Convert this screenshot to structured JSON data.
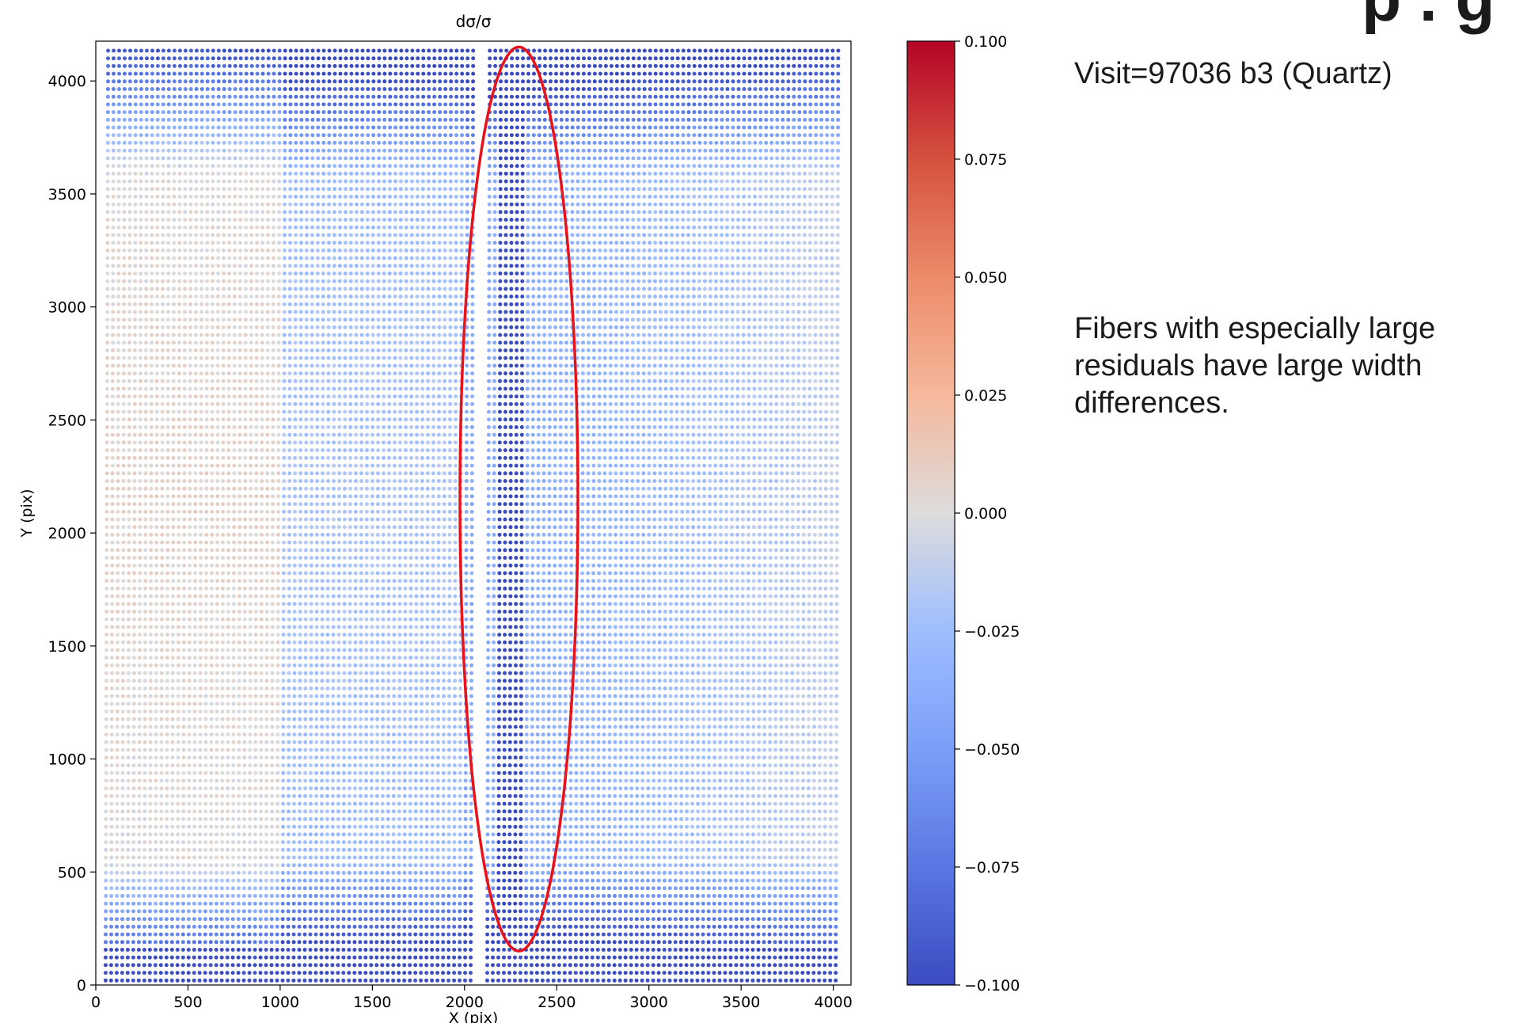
{
  "side_panel": {
    "cut_title": "p . g",
    "visit": "Visit=97036 b3 (Quartz)",
    "note": "Fibers with especially large residuals have large width differences."
  },
  "chart_data": {
    "type": "scatter",
    "title": "dσ/σ",
    "xlabel": "X (pix)",
    "ylabel": "Y (pix)",
    "xlim": [
      0,
      4096
    ],
    "ylim": [
      0,
      4176
    ],
    "x_ticks": [
      0,
      500,
      1000,
      1500,
      2000,
      2500,
      3000,
      3500,
      4000
    ],
    "y_ticks": [
      0,
      500,
      1000,
      1500,
      2000,
      2500,
      3000,
      3500,
      4000
    ],
    "x_tick_labels": [
      "0",
      "500",
      "1000",
      "1500",
      "2000",
      "2500",
      "3000",
      "3500",
      "4000"
    ],
    "y_tick_labels": [
      "0",
      "500",
      "1000",
      "1500",
      "2000",
      "2500",
      "3000",
      "3500",
      "4000"
    ],
    "colormap": "coolwarm",
    "color_range": [
      -0.1,
      0.1
    ],
    "colorbar_ticks": [
      0.1,
      0.075,
      0.05,
      0.025,
      0.0,
      -0.025,
      -0.05,
      -0.075,
      -0.1
    ],
    "colorbar_tick_labels": [
      "0.100",
      "0.075",
      "0.050",
      "0.025",
      "0.000",
      "−0.025",
      "−0.050",
      "−0.075",
      "−0.100"
    ],
    "fiber_x_range": [
      60,
      4030
    ],
    "fiber_gap_x": [
      2040,
      2110
    ],
    "fiber_y_range": [
      20,
      4160
    ],
    "highlight_ellipse": {
      "center_x": 2295,
      "center_y": 2150,
      "width_x": 640,
      "height_y": 4000,
      "color": "#e8131a"
    },
    "regions": [
      {
        "name": "bottom band",
        "y_range": [
          0,
          550
        ],
        "typical_value": -0.09
      },
      {
        "name": "top band",
        "y_range": [
          3650,
          4176
        ],
        "typical_value": -0.085
      },
      {
        "name": "left-middle",
        "x_range": [
          60,
          1000
        ],
        "y_range": [
          1200,
          3300
        ],
        "typical_value": 0.01
      },
      {
        "name": "center",
        "x_range": [
          1000,
          2000
        ],
        "y_range": [
          600,
          3600
        ],
        "typical_value": -0.02
      },
      {
        "name": "highlighted fibers",
        "x_range": [
          2180,
          2330
        ],
        "y_range": [
          200,
          3900
        ],
        "typical_value": -0.1
      },
      {
        "name": "right",
        "x_range": [
          2400,
          4030
        ],
        "y_range": [
          700,
          3500
        ],
        "typical_value": -0.03
      }
    ]
  }
}
